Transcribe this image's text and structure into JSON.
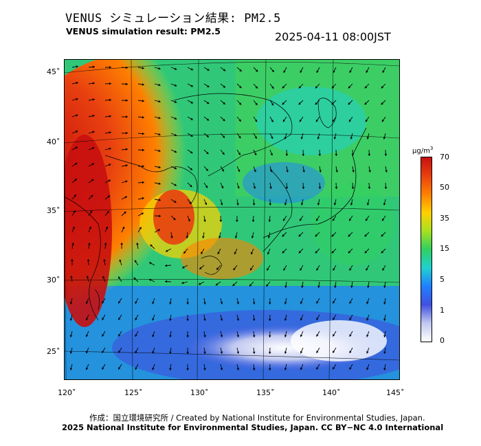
{
  "header": {
    "title_jp": "VENUS シミュレーション結果: PM2.5",
    "title_en": "VENUS simulation result: PM2.5",
    "timestamp": "2025-04-11 08:00JST"
  },
  "map": {
    "lat_labels": [
      "45˚",
      "40˚",
      "35˚",
      "30˚",
      "25˚"
    ],
    "lon_labels": [
      "120˚",
      "125˚",
      "130˚",
      "135˚",
      "140˚",
      "145˚"
    ]
  },
  "colorbar": {
    "unit_base": "μg/m",
    "unit_exp": "3",
    "ticks": [
      "70",
      "50",
      "35",
      "15",
      "5",
      "1",
      "0"
    ],
    "colors": [
      "#c81010",
      "#e84010",
      "#ff8000",
      "#ffd000",
      "#a8e020",
      "#30d060",
      "#20d0d0",
      "#2080ff",
      "#4050e0",
      "#c0c8f0",
      "#ffffff"
    ]
  },
  "footer": {
    "credit": "作成：国立環境研究所 / Created by National Institute for Environmental Studies, Japan.",
    "copyright": "2025 National Institute for Environmental Studies, Japan. CC BY−NC 4.0 International"
  }
}
